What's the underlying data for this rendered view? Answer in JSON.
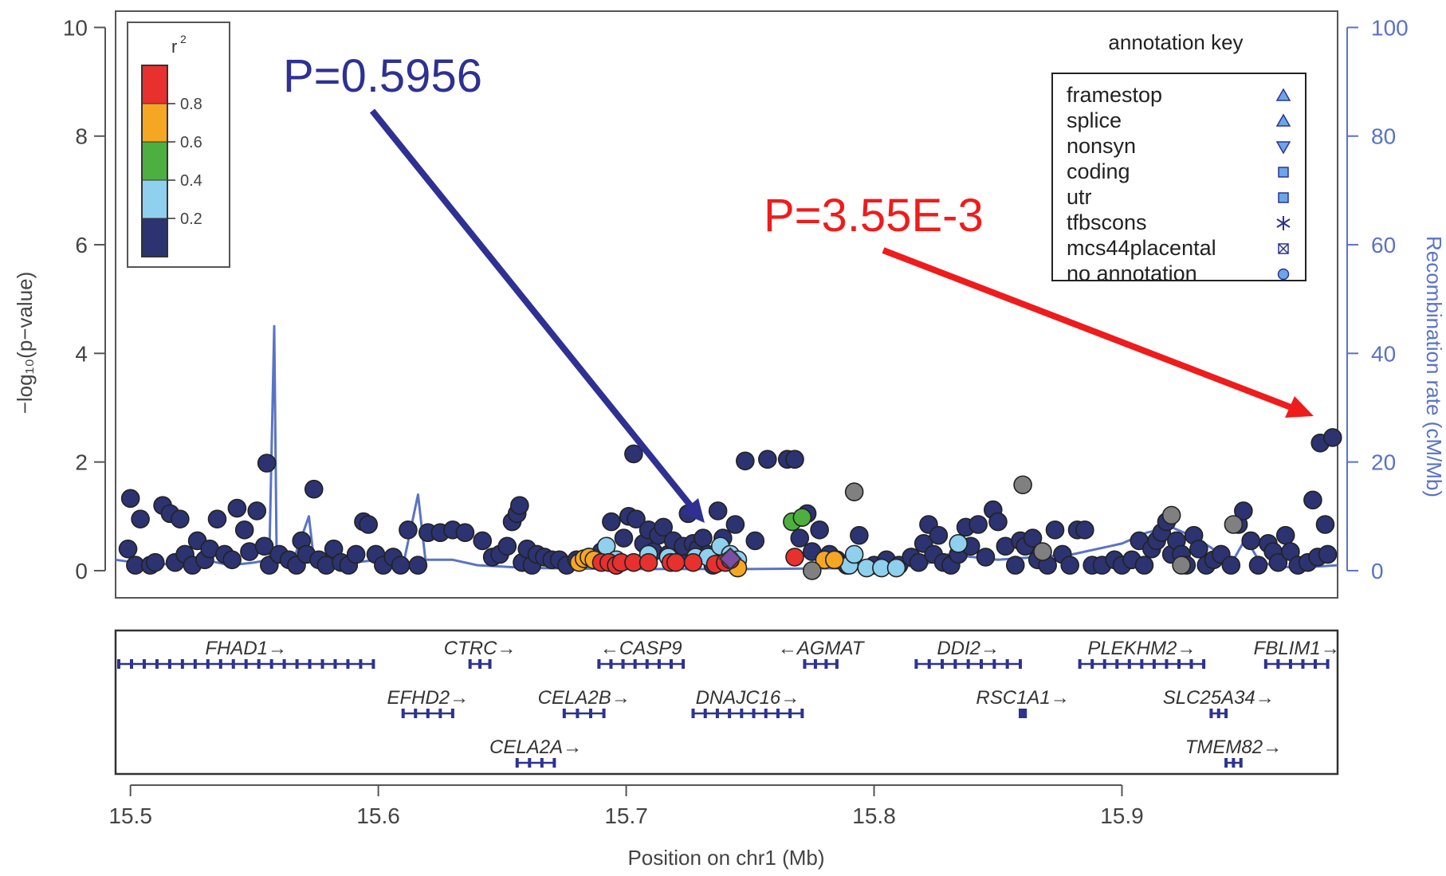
{
  "chart_data": {
    "type": "scatter",
    "xlabel": "Position on chr1 (Mb)",
    "ylabel_left": "−log₁₀(p−value)",
    "ylabel_right": "Recombination rate (cM/Mb)",
    "xlim": [
      15.494,
      15.987
    ],
    "ylim": [
      -0.5,
      10.3
    ],
    "ylim_right": [
      -5,
      103
    ],
    "x_ticks": [
      "15.5",
      "15.6",
      "15.7",
      "15.8",
      "15.9"
    ],
    "y_ticks_left": [
      "0",
      "2",
      "4",
      "6",
      "8",
      "10"
    ],
    "y_ticks_right": [
      "0",
      "20",
      "40",
      "60",
      "80",
      "100"
    ],
    "colors": {
      "r2_gt_0.8": "#e8302e",
      "r2_0.6_0.8": "#f5a623",
      "r2_0.4_0.6": "#4caf3f",
      "r2_0.2_0.4": "#8fd0ee",
      "r2_lt_0.2": "#2c3370",
      "no_ld": "#808080",
      "index_snp": "#7b4ea6",
      "recombination": "#5a73c4",
      "gene": "#2c3390",
      "left_arrow": "#2e3192",
      "right_arrow": "#ee1c1c"
    },
    "r2_legend": {
      "title": "r",
      "title_sup": "2",
      "ticks": [
        "0.8",
        "0.6",
        "0.4",
        "0.2"
      ]
    },
    "annotation_key": {
      "title": "annotation key",
      "items": [
        {
          "label": "framestop",
          "icon": "triangle-up-icon"
        },
        {
          "label": "splice",
          "icon": "triangle-up-icon"
        },
        {
          "label": "nonsyn",
          "icon": "triangle-down-icon"
        },
        {
          "label": "coding",
          "icon": "square-icon"
        },
        {
          "label": "utr",
          "icon": "square-icon"
        },
        {
          "label": "tfbscons",
          "icon": "asterisk-icon"
        },
        {
          "label": "mcs44placental",
          "icon": "crossed-square-icon"
        },
        {
          "label": "no annotation",
          "icon": "circle-icon"
        }
      ]
    },
    "callouts": [
      {
        "text": "P=0.5956",
        "color": "#2e3192"
      },
      {
        "text": "P=3.55E-3",
        "color": "#ee1c1c"
      }
    ],
    "recombination_rate": [
      [
        15.494,
        2
      ],
      [
        15.51,
        1
      ],
      [
        15.52,
        1.5
      ],
      [
        15.53,
        2
      ],
      [
        15.54,
        1
      ],
      [
        15.55,
        1.5
      ],
      [
        15.556,
        2
      ],
      [
        15.558,
        45
      ],
      [
        15.559,
        2
      ],
      [
        15.562,
        2
      ],
      [
        15.565,
        1
      ],
      [
        15.572,
        10
      ],
      [
        15.574,
        2
      ],
      [
        15.59,
        1.5
      ],
      [
        15.6,
        2
      ],
      [
        15.61,
        1
      ],
      [
        15.616,
        14
      ],
      [
        15.619,
        2
      ],
      [
        15.63,
        2
      ],
      [
        15.64,
        1
      ],
      [
        15.66,
        0.5
      ],
      [
        15.7,
        0.3
      ],
      [
        15.75,
        0.3
      ],
      [
        15.8,
        0.5
      ],
      [
        15.82,
        1
      ],
      [
        15.83,
        3
      ],
      [
        15.85,
        2
      ],
      [
        15.88,
        3
      ],
      [
        15.9,
        5
      ],
      [
        15.91,
        7
      ],
      [
        15.92,
        8
      ],
      [
        15.93,
        6
      ],
      [
        15.94,
        3
      ],
      [
        15.945,
        2
      ],
      [
        15.95,
        6
      ],
      [
        15.955,
        2
      ],
      [
        15.96,
        1
      ],
      [
        15.97,
        0.5
      ],
      [
        15.987,
        1
      ]
    ],
    "snp_groups": [
      {
        "name": "r2 < 0.2",
        "class": "r2_lt_0.2",
        "points": [
          [
            15.499,
            0.4
          ],
          [
            15.5,
            1.33
          ],
          [
            15.502,
            0.1
          ],
          [
            15.504,
            0.95
          ],
          [
            15.508,
            0.1
          ],
          [
            15.51,
            0.15
          ],
          [
            15.513,
            1.2
          ],
          [
            15.516,
            1.05
          ],
          [
            15.518,
            0.15
          ],
          [
            15.52,
            0.95
          ],
          [
            15.522,
            0.3
          ],
          [
            15.525,
            0.1
          ],
          [
            15.527,
            0.55
          ],
          [
            15.53,
            0.2
          ],
          [
            15.532,
            0.4
          ],
          [
            15.535,
            0.95
          ],
          [
            15.538,
            0.3
          ],
          [
            15.541,
            0.2
          ],
          [
            15.543,
            1.15
          ],
          [
            15.546,
            0.75
          ],
          [
            15.548,
            0.35
          ],
          [
            15.551,
            1.1
          ],
          [
            15.554,
            0.45
          ],
          [
            15.556,
            0.1
          ],
          [
            15.555,
            1.98
          ],
          [
            15.56,
            0.3
          ],
          [
            15.564,
            0.2
          ],
          [
            15.567,
            0.1
          ],
          [
            15.569,
            0.55
          ],
          [
            15.571,
            0.3
          ],
          [
            15.574,
            1.5
          ],
          [
            15.576,
            0.2
          ],
          [
            15.579,
            0.1
          ],
          [
            15.582,
            0.4
          ],
          [
            15.585,
            0.15
          ],
          [
            15.588,
            0.1
          ],
          [
            15.591,
            0.3
          ],
          [
            15.594,
            0.9
          ],
          [
            15.596,
            0.85
          ],
          [
            15.599,
            0.3
          ],
          [
            15.602,
            0.1
          ],
          [
            15.606,
            0.25
          ],
          [
            15.609,
            0.1
          ],
          [
            15.612,
            0.75
          ],
          [
            15.616,
            0.1
          ],
          [
            15.62,
            0.7
          ],
          [
            15.625,
            0.7
          ],
          [
            15.63,
            0.75
          ],
          [
            15.635,
            0.7
          ],
          [
            15.642,
            0.55
          ],
          [
            15.646,
            0.25
          ],
          [
            15.649,
            0.3
          ],
          [
            15.652,
            0.45
          ],
          [
            15.654,
            0.9
          ],
          [
            15.656,
            1.05
          ],
          [
            15.657,
            1.2
          ],
          [
            15.658,
            0.15
          ],
          [
            15.66,
            0.4
          ],
          [
            15.662,
            0.1
          ],
          [
            15.664,
            0.3
          ],
          [
            15.667,
            0.25
          ],
          [
            15.67,
            0.2
          ],
          [
            15.673,
            0.2
          ],
          [
            15.676,
            0.1
          ],
          [
            15.68,
            0.2
          ],
          [
            15.685,
            0.25
          ],
          [
            15.69,
            0.35
          ],
          [
            15.694,
            0.9
          ],
          [
            15.696,
            0.1
          ],
          [
            15.699,
            0.6
          ],
          [
            15.701,
            1.0
          ],
          [
            15.703,
            2.15
          ],
          [
            15.704,
            0.95
          ],
          [
            15.707,
            0.5
          ],
          [
            15.709,
            0.75
          ],
          [
            15.711,
            0.35
          ],
          [
            15.713,
            0.65
          ],
          [
            15.715,
            0.8
          ],
          [
            15.717,
            0.3
          ],
          [
            15.719,
            0.55
          ],
          [
            15.721,
            0.2
          ],
          [
            15.723,
            0.45
          ],
          [
            15.725,
            1.05
          ],
          [
            15.727,
            0.5
          ],
          [
            15.729,
            0.4
          ],
          [
            15.731,
            0.6
          ],
          [
            15.733,
            0.3
          ],
          [
            15.735,
            0.1
          ],
          [
            15.737,
            1.1
          ],
          [
            15.739,
            0.6
          ],
          [
            15.741,
            0.3
          ],
          [
            15.744,
            0.85
          ],
          [
            15.748,
            2.02
          ],
          [
            15.752,
            0.55
          ],
          [
            15.757,
            2.05
          ],
          [
            15.765,
            2.05
          ],
          [
            15.768,
            2.05
          ],
          [
            15.77,
            0.6
          ],
          [
            15.773,
            1.05
          ],
          [
            15.775,
            0.35
          ],
          [
            15.778,
            0.75
          ],
          [
            15.782,
            0.3
          ],
          [
            15.785,
            0.2
          ],
          [
            15.789,
            0.1
          ],
          [
            15.794,
            0.65
          ],
          [
            15.8,
            0.1
          ],
          [
            15.805,
            0.2
          ],
          [
            15.81,
            0.1
          ],
          [
            15.815,
            0.25
          ],
          [
            15.818,
            0.15
          ],
          [
            15.82,
            0.5
          ],
          [
            15.822,
            0.85
          ],
          [
            15.824,
            0.3
          ],
          [
            15.826,
            0.65
          ],
          [
            15.828,
            0.15
          ],
          [
            15.831,
            0.1
          ],
          [
            15.834,
            0.3
          ],
          [
            15.837,
            0.8
          ],
          [
            15.839,
            0.45
          ],
          [
            15.842,
            0.85
          ],
          [
            15.845,
            0.25
          ],
          [
            15.848,
            1.12
          ],
          [
            15.85,
            0.9
          ],
          [
            15.853,
            0.45
          ],
          [
            15.857,
            0.1
          ],
          [
            15.859,
            0.55
          ],
          [
            15.861,
            0.45
          ],
          [
            15.864,
            0.6
          ],
          [
            15.866,
            0.2
          ],
          [
            15.87,
            0.1
          ],
          [
            15.873,
            0.75
          ],
          [
            15.876,
            0.3
          ],
          [
            15.879,
            0.1
          ],
          [
            15.882,
            0.75
          ],
          [
            15.885,
            0.75
          ],
          [
            15.888,
            0.1
          ],
          [
            15.892,
            0.1
          ],
          [
            15.897,
            0.2
          ],
          [
            15.9,
            0.1
          ],
          [
            15.904,
            0.2
          ],
          [
            15.907,
            0.55
          ],
          [
            15.909,
            0.1
          ],
          [
            15.912,
            0.4
          ],
          [
            15.914,
            0.55
          ],
          [
            15.916,
            0.7
          ],
          [
            15.918,
            0.9
          ],
          [
            15.92,
            0.3
          ],
          [
            15.922,
            0.55
          ],
          [
            15.924,
            0.3
          ],
          [
            15.926,
            0.1
          ],
          [
            15.929,
            0.65
          ],
          [
            15.931,
            0.4
          ],
          [
            15.934,
            0.1
          ],
          [
            15.937,
            0.2
          ],
          [
            15.94,
            0.3
          ],
          [
            15.944,
            0.1
          ],
          [
            15.947,
            0.85
          ],
          [
            15.949,
            1.1
          ],
          [
            15.952,
            0.55
          ],
          [
            15.955,
            0.1
          ],
          [
            15.959,
            0.5
          ],
          [
            15.961,
            0.35
          ],
          [
            15.963,
            0.15
          ],
          [
            15.966,
            0.65
          ],
          [
            15.968,
            0.35
          ],
          [
            15.971,
            0.1
          ],
          [
            15.975,
            0.15
          ],
          [
            15.977,
            1.3
          ],
          [
            15.979,
            0.25
          ],
          [
            15.98,
            2.35
          ],
          [
            15.982,
            0.85
          ],
          [
            15.983,
            0.3
          ],
          [
            15.985,
            2.45
          ]
        ]
      },
      {
        "name": "r2 0.2-0.4",
        "class": "r2_0.2_0.4",
        "points": [
          [
            15.692,
            0.45
          ],
          [
            15.696,
            0.2
          ],
          [
            15.709,
            0.3
          ],
          [
            15.717,
            0.25
          ],
          [
            15.728,
            0.25
          ],
          [
            15.733,
            0.25
          ],
          [
            15.738,
            0.45
          ],
          [
            15.742,
            0.3
          ],
          [
            15.745,
            0.2
          ],
          [
            15.79,
            0.1
          ],
          [
            15.792,
            0.3
          ],
          [
            15.797,
            0.05
          ],
          [
            15.803,
            0.05
          ],
          [
            15.809,
            0.05
          ],
          [
            15.834,
            0.5
          ]
        ]
      },
      {
        "name": "r2 0.4-0.6",
        "class": "r2_0.4_0.6",
        "points": [
          [
            15.767,
            0.9
          ],
          [
            15.771,
            0.98
          ]
        ]
      },
      {
        "name": "r2 0.6-0.8",
        "class": "r2_0.6_0.8",
        "points": [
          [
            15.681,
            0.15
          ],
          [
            15.683,
            0.22
          ],
          [
            15.685,
            0.25
          ],
          [
            15.687,
            0.2
          ],
          [
            15.745,
            0.05
          ],
          [
            15.78,
            0.2
          ],
          [
            15.784,
            0.2
          ]
        ]
      },
      {
        "name": "r2 > 0.8",
        "class": "r2_gt_0.8",
        "points": [
          [
            15.69,
            0.15
          ],
          [
            15.693,
            0.15
          ],
          [
            15.696,
            0.1
          ],
          [
            15.698,
            0.15
          ],
          [
            15.703,
            0.15
          ],
          [
            15.709,
            0.15
          ],
          [
            15.718,
            0.15
          ],
          [
            15.72,
            0.15
          ],
          [
            15.727,
            0.15
          ],
          [
            15.736,
            0.12
          ],
          [
            15.74,
            0.15
          ],
          [
            15.742,
            0.2
          ],
          [
            15.768,
            0.25
          ]
        ]
      },
      {
        "name": "no LD",
        "class": "no_ld",
        "points": [
          [
            15.775,
            0.0
          ],
          [
            15.792,
            1.45
          ],
          [
            15.86,
            1.58
          ],
          [
            15.868,
            0.35
          ],
          [
            15.92,
            1.02
          ],
          [
            15.924,
            0.1
          ],
          [
            15.945,
            0.85
          ]
        ]
      },
      {
        "name": "index SNP",
        "class": "index_snp",
        "points": [
          [
            15.742,
            0.22
          ]
        ]
      }
    ],
    "genes": [
      {
        "name": "FHAD1",
        "start": 15.494,
        "end": 15.598,
        "strand": "+",
        "row": 0
      },
      {
        "name": "CTRC",
        "start": 15.637,
        "end": 15.645,
        "strand": "+",
        "row": 0
      },
      {
        "name": "CASP9",
        "start": 15.689,
        "end": 15.723,
        "strand": "-",
        "row": 0
      },
      {
        "name": "AGMAT",
        "start": 15.772,
        "end": 15.785,
        "strand": "-",
        "row": 0
      },
      {
        "name": "DDI2",
        "start": 15.817,
        "end": 15.859,
        "strand": "+",
        "row": 0
      },
      {
        "name": "PLEKHM2",
        "start": 15.883,
        "end": 15.933,
        "strand": "+",
        "row": 0
      },
      {
        "name": "FBLIM1",
        "start": 15.958,
        "end": 15.983,
        "strand": "+",
        "row": 0
      },
      {
        "name": "EFHD2",
        "start": 15.61,
        "end": 15.63,
        "strand": "+",
        "row": 1
      },
      {
        "name": "CELA2B",
        "start": 15.675,
        "end": 15.691,
        "strand": "+",
        "row": 1
      },
      {
        "name": "DNAJC16",
        "start": 15.727,
        "end": 15.771,
        "strand": "+",
        "row": 1
      },
      {
        "name": "RSC1A1",
        "start": 15.859,
        "end": 15.861,
        "strand": "+",
        "row": 1
      },
      {
        "name": "SLC25A34",
        "start": 15.936,
        "end": 15.942,
        "strand": "+",
        "row": 1
      },
      {
        "name": "CELA2A",
        "start": 15.656,
        "end": 15.671,
        "strand": "+",
        "row": 2
      },
      {
        "name": "TMEM82",
        "start": 15.942,
        "end": 15.948,
        "strand": "+",
        "row": 2
      }
    ]
  }
}
